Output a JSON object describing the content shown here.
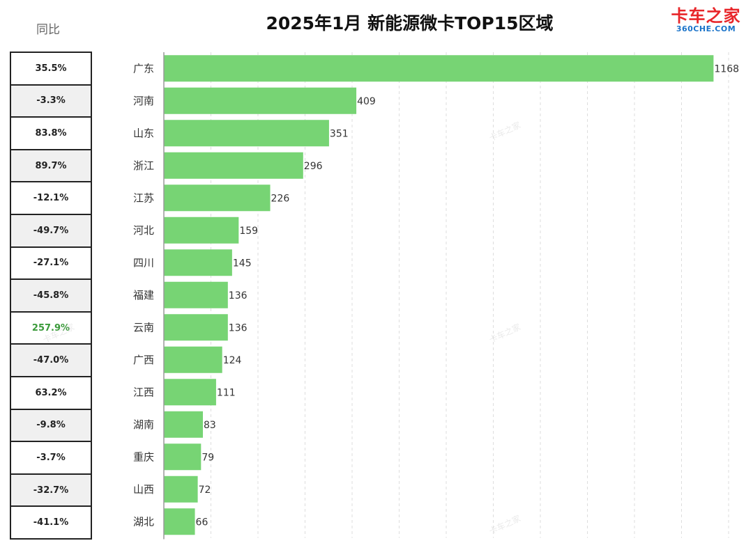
{
  "header": {
    "title": "2025年1月 新能源微卡TOP15区域",
    "yoy_label": "同比",
    "logo_cn": "卡车之家",
    "logo_en": "360CHE.COM"
  },
  "chart_data": {
    "type": "bar",
    "orientation": "horizontal",
    "title": "2025年1月 新能源微卡TOP15区域",
    "categories": [
      "广东",
      "河南",
      "山东",
      "浙江",
      "江苏",
      "河北",
      "四川",
      "福建",
      "云南",
      "广西",
      "江西",
      "湖南",
      "重庆",
      "山西",
      "湖北"
    ],
    "values": [
      1168,
      409,
      351,
      296,
      226,
      159,
      145,
      136,
      136,
      124,
      111,
      83,
      79,
      72,
      66
    ],
    "yoy": [
      "35.5%",
      "-3.3%",
      "83.8%",
      "89.7%",
      "-12.1%",
      "-49.7%",
      "-27.1%",
      "-45.8%",
      "257.9%",
      "-47.0%",
      "63.2%",
      "-9.8%",
      "-3.7%",
      "-32.7%",
      "-41.1%"
    ],
    "highlight_index": 8,
    "xlim": [
      0,
      1200
    ],
    "grid": true,
    "bar_color": "#77d474",
    "highlight_color": "#3a9a3a"
  }
}
